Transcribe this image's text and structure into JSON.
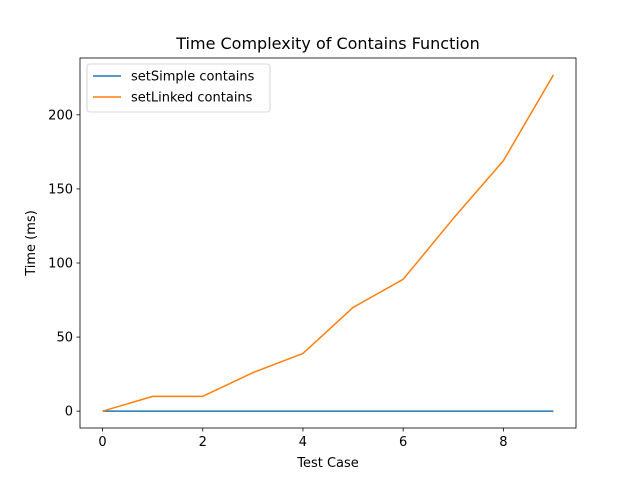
{
  "chart_data": {
    "type": "line",
    "title": "Time Complexity of Contains Function",
    "xlabel": "Test Case",
    "ylabel": "Time (ms)",
    "x": [
      0,
      1,
      2,
      3,
      4,
      5,
      6,
      7,
      8,
      9
    ],
    "xlim": [
      -0.45,
      9.45
    ],
    "ylim": [
      -11.35,
      238.35
    ],
    "xticks": [
      0,
      2,
      4,
      6,
      8
    ],
    "yticks": [
      0,
      50,
      100,
      150,
      200
    ],
    "grid": false,
    "legend_position": "upper-left",
    "series": [
      {
        "name": "setSimple contains",
        "color": "#1f77b4",
        "values": [
          0,
          0,
          0,
          0,
          0,
          0,
          0,
          0,
          0,
          0
        ]
      },
      {
        "name": "setLinked contains",
        "color": "#ff7f0e",
        "values": [
          0,
          10,
          10,
          26,
          39,
          70,
          89,
          130,
          169,
          227
        ]
      }
    ]
  }
}
